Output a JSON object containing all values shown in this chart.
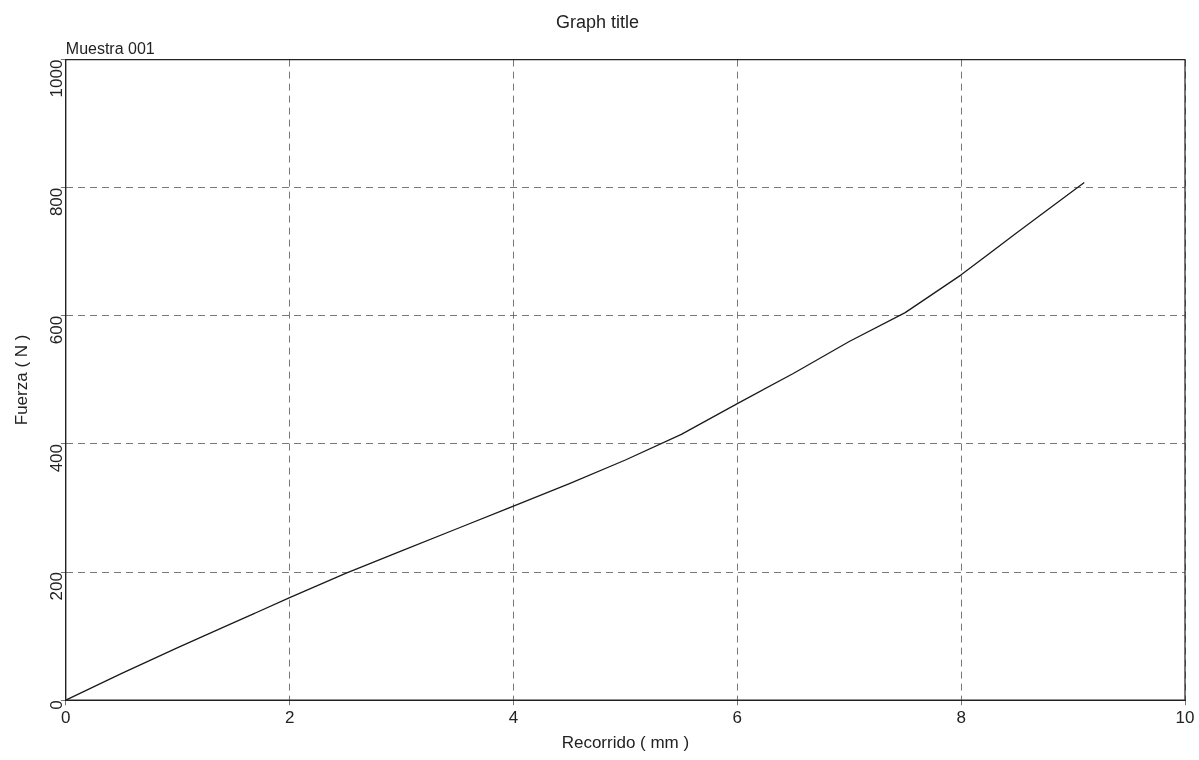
{
  "chart_data": {
    "type": "line",
    "title": "Graph title",
    "xlabel": "Recorrido ( mm )",
    "ylabel": "Fuerza ( N )",
    "annotations": [
      "Muestra 001"
    ],
    "x": [
      0,
      0.5,
      1,
      1.5,
      2,
      2.5,
      3,
      3.5,
      4,
      4.5,
      5,
      5.5,
      6,
      6.5,
      7,
      7.5,
      8,
      8.5,
      9.1
    ],
    "series": [
      {
        "color": "#1a1a1a",
        "values": [
          0,
          42,
          82,
          121,
          160,
          198,
          233,
          268,
          303,
          338,
          375,
          415,
          463,
          510,
          560,
          605,
          664,
          730,
          808
        ]
      }
    ],
    "xlim": [
      0,
      10
    ],
    "xticks": [
      0,
      2,
      4,
      6,
      8,
      10
    ],
    "ylim": [
      0,
      1000
    ],
    "yticks": [
      0,
      200,
      400,
      600,
      800,
      1000
    ],
    "grid": true,
    "line_style": "solid",
    "marker": "none",
    "legend": false
  }
}
